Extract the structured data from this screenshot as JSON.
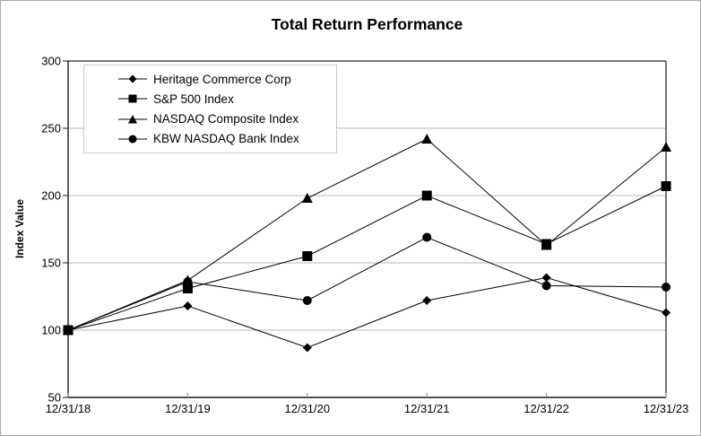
{
  "chart_data": {
    "type": "line",
    "title": "Total Return Performance",
    "xlabel": "",
    "ylabel": "Index Value",
    "ylim": [
      50,
      300
    ],
    "yticks": [
      300,
      250,
      200,
      150,
      100,
      50
    ],
    "grid": true,
    "legend_position": "top-left-inside",
    "categories": [
      "12/31/18",
      "12/31/19",
      "12/31/20",
      "12/31/21",
      "12/31/22",
      "12/31/23"
    ],
    "series": [
      {
        "name": "Heritage Commerce Corp",
        "marker": "diamond",
        "values": [
          100,
          118,
          87,
          122,
          139,
          113
        ]
      },
      {
        "name": "S&P 500 Index",
        "marker": "square",
        "values": [
          100,
          131,
          155,
          200,
          164,
          207
        ]
      },
      {
        "name": "NASDAQ Composite Index",
        "marker": "triangle",
        "values": [
          100,
          137,
          198,
          242,
          163,
          236
        ]
      },
      {
        "name": "KBW NASDAQ Bank Index",
        "marker": "circle",
        "values": [
          100,
          136,
          122,
          169,
          133,
          132
        ]
      }
    ],
    "colors": {
      "series": "#000000",
      "gridline": "#b8b8b8",
      "axis": "#1a1a1a",
      "plot_top_border": "#2e2e2e",
      "x_tick": "#8c8c8c",
      "legend_border": "#c9c9c9",
      "outer_border": "#a9a9a9"
    }
  }
}
